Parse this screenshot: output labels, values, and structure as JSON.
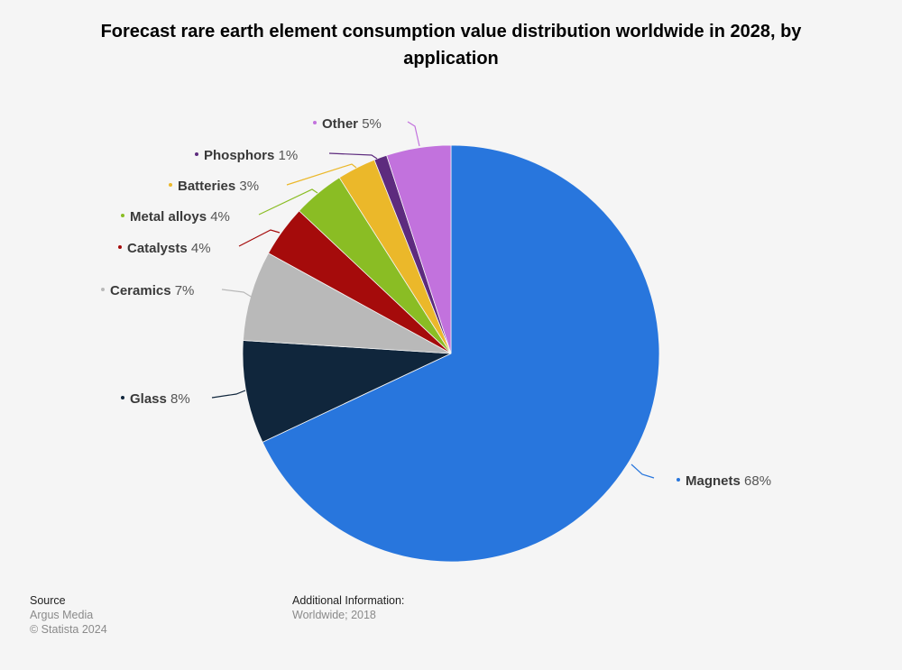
{
  "chart_data": {
    "type": "pie",
    "title": "Forecast rare earth element consumption value distribution worldwide in 2028, by application",
    "unit": "%",
    "slices": [
      {
        "label": "Magnets",
        "value": 68,
        "display": "68%",
        "color": "#2876dd"
      },
      {
        "label": "Glass",
        "value": 8,
        "display": "8%",
        "color": "#10263c"
      },
      {
        "label": "Ceramics",
        "value": 7,
        "display": "7%",
        "color": "#b9b9b9"
      },
      {
        "label": "Catalysts",
        "value": 4,
        "display": "4%",
        "color": "#a50b0b"
      },
      {
        "label": "Metal alloys",
        "value": 4,
        "display": "4%",
        "color": "#8abd24"
      },
      {
        "label": "Batteries",
        "value": 3,
        "display": "3%",
        "color": "#ebb82a"
      },
      {
        "label": "Phosphors",
        "value": 1,
        "display": "1%",
        "color": "#5d2b7e"
      },
      {
        "label": "Other",
        "value": 5,
        "display": "5%",
        "color": "#c272dd"
      }
    ]
  },
  "footer": {
    "source_heading": "Source",
    "source": "Argus Media",
    "copyright": "© Statista 2024",
    "additional_heading": "Additional Information:",
    "additional": "Worldwide; 2018"
  }
}
